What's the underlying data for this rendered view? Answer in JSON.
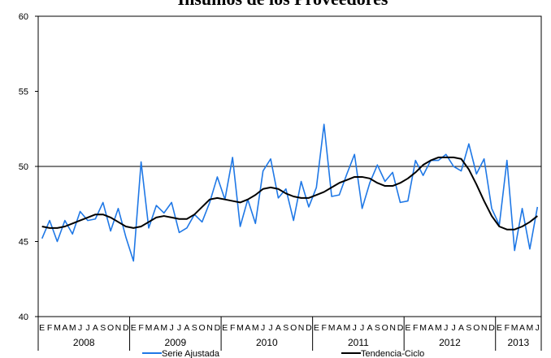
{
  "chart_data": {
    "type": "line",
    "title": "Insumos de los Proveedores",
    "categories": [
      "E",
      "F",
      "M",
      "A",
      "M",
      "J",
      "J",
      "A",
      "S",
      "O",
      "N",
      "D",
      "E",
      "F",
      "M",
      "A",
      "M",
      "J",
      "J",
      "A",
      "S",
      "O",
      "N",
      "D",
      "E",
      "F",
      "M",
      "A",
      "M",
      "J",
      "J",
      "A",
      "S",
      "O",
      "N",
      "D",
      "E",
      "F",
      "M",
      "A",
      "M",
      "J",
      "J",
      "A",
      "S",
      "O",
      "N",
      "D",
      "E",
      "F",
      "M",
      "A",
      "M",
      "J",
      "J",
      "A",
      "S",
      "O",
      "N",
      "D",
      "E",
      "F",
      "M",
      "A",
      "M",
      "J"
    ],
    "years": [
      "2008",
      "2009",
      "2010",
      "2011",
      "2012",
      "2013"
    ],
    "ylim": [
      40,
      60
    ],
    "yticks": [
      40,
      45,
      50,
      55,
      60
    ],
    "reference_line": 50,
    "series": [
      {
        "name": "Serie Ajustada",
        "color": "#1f78e6",
        "values": [
          45.2,
          46.4,
          45.0,
          46.4,
          45.5,
          47.0,
          46.4,
          46.5,
          47.6,
          45.7,
          47.2,
          45.3,
          43.7,
          50.3,
          45.9,
          47.4,
          46.9,
          47.6,
          45.6,
          45.9,
          46.8,
          46.3,
          47.6,
          49.3,
          47.8,
          50.6,
          46.0,
          47.8,
          46.2,
          49.7,
          50.5,
          47.9,
          48.5,
          46.4,
          49.0,
          47.3,
          48.6,
          52.8,
          48.0,
          48.1,
          49.5,
          50.8,
          47.2,
          48.9,
          50.1,
          49.0,
          49.6,
          47.6,
          47.7,
          50.4,
          49.4,
          50.4,
          50.4,
          50.8,
          50.0,
          49.7,
          51.5,
          49.5,
          50.5,
          47.2,
          46.1,
          50.4,
          44.4,
          47.2,
          44.5,
          47.3
        ]
      },
      {
        "name": "Tendencia-Ciclo",
        "color": "#000000",
        "values": [
          46.0,
          45.9,
          45.9,
          46.0,
          46.2,
          46.4,
          46.6,
          46.8,
          46.8,
          46.6,
          46.3,
          46.0,
          45.9,
          46.0,
          46.3,
          46.6,
          46.7,
          46.6,
          46.5,
          46.5,
          46.8,
          47.3,
          47.8,
          47.9,
          47.8,
          47.7,
          47.6,
          47.8,
          48.1,
          48.5,
          48.6,
          48.5,
          48.2,
          48.0,
          47.9,
          47.9,
          48.1,
          48.3,
          48.6,
          48.9,
          49.1,
          49.3,
          49.3,
          49.2,
          48.9,
          48.7,
          48.7,
          48.9,
          49.2,
          49.6,
          50.1,
          50.4,
          50.6,
          50.6,
          50.6,
          50.5,
          49.8,
          48.8,
          47.7,
          46.7,
          46.0,
          45.8,
          45.8,
          46.0,
          46.3,
          46.7
        ]
      }
    ]
  }
}
